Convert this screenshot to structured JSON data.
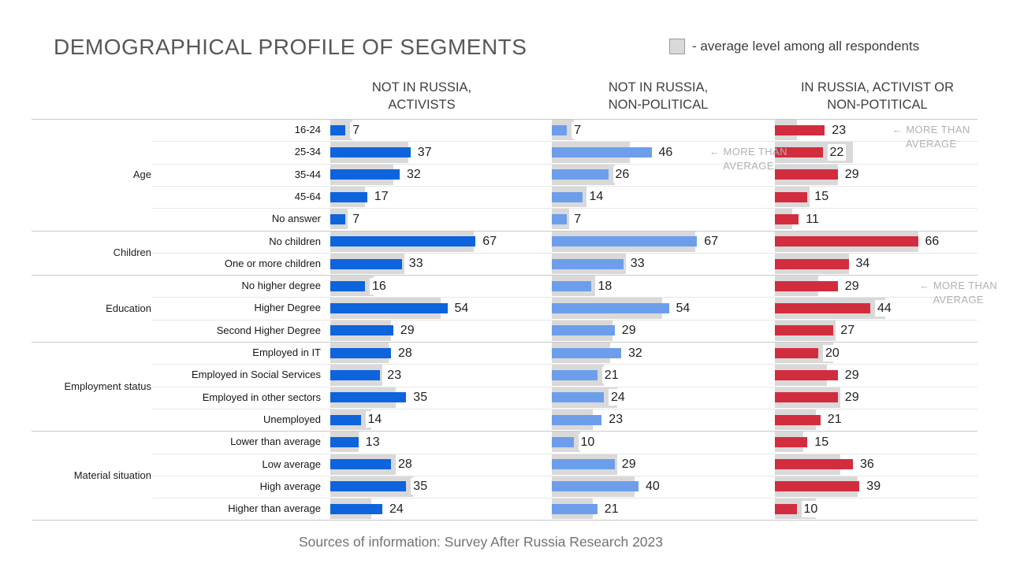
{
  "title": "DEMOGRAPHICAL PROFILE OF SEGMENTS",
  "legend": {
    "swatch_color": "#d9d9d9",
    "label": "- average level among all respondents"
  },
  "column_headers": [
    "NOT IN RUSSIA,\nACTIVISTS",
    "NOT IN RUSSIA,\nNON-POLITICAL",
    "IN RUSSIA, ACTIVIST OR\nNON-POTITICAL"
  ],
  "footer": "Sources of information: Survey After Russia Research 2023",
  "chart_data": {
    "type": "bar",
    "orientation": "horizontal",
    "title": "DEMOGRAPHICAL PROFILE OF SEGMENTS",
    "categories": [
      "16-24",
      "25-34",
      "35-44",
      "45-64",
      "No answer",
      "No children",
      "One or more children",
      "No higher degree",
      "Higher Degree",
      "Second Higher Degree",
      "Employed in IT",
      "Employed in Social Services",
      "Employed in other sectors",
      "Unemployed",
      "Lower than average",
      "Low average",
      "High average",
      "Higher than average"
    ],
    "row_groups": [
      {
        "label": "Age",
        "count": 5
      },
      {
        "label": "Children",
        "count": 2
      },
      {
        "label": "Education",
        "count": 3
      },
      {
        "label": "Employment status",
        "count": 4
      },
      {
        "label": "Material situation",
        "count": 4
      }
    ],
    "series": [
      {
        "name": "NOT IN RUSSIA, ACTIVISTS",
        "color": "#0d64dc",
        "values": [
          7,
          37,
          32,
          17,
          7,
          67,
          33,
          16,
          54,
          29,
          28,
          23,
          35,
          14,
          13,
          28,
          35,
          24
        ]
      },
      {
        "name": "NOT IN RUSSIA, NON-POLITICAL",
        "color": "#6d9eeb",
        "values": [
          7,
          46,
          26,
          14,
          7,
          67,
          33,
          18,
          54,
          29,
          32,
          21,
          24,
          23,
          10,
          29,
          40,
          21
        ]
      },
      {
        "name": "IN RUSSIA, ACTIVIST OR NON-POTITICAL",
        "color": "#d22d3e",
        "values": [
          23,
          22,
          29,
          15,
          11,
          66,
          34,
          29,
          44,
          27,
          20,
          29,
          29,
          21,
          15,
          36,
          39,
          10
        ]
      }
    ],
    "average_series": {
      "name": "average level among all respondents",
      "color": "#d9d9d9",
      "values": [
        10,
        36,
        29,
        16,
        8,
        66,
        34,
        20,
        51,
        28,
        27,
        24,
        30,
        19,
        13,
        30,
        38,
        19
      ]
    },
    "annotations": [
      {
        "series_index": 1,
        "row_index": 1,
        "lines": [
          "← MORE THAN",
          "AVERAGE"
        ]
      },
      {
        "series_index": 2,
        "row_index": 0,
        "lines": [
          "← MORE THAN",
          "AVERAGE"
        ]
      },
      {
        "series_index": 2,
        "row_index": 7,
        "lines": [
          "← MORE THAN",
          "AVERAGE"
        ]
      }
    ]
  }
}
